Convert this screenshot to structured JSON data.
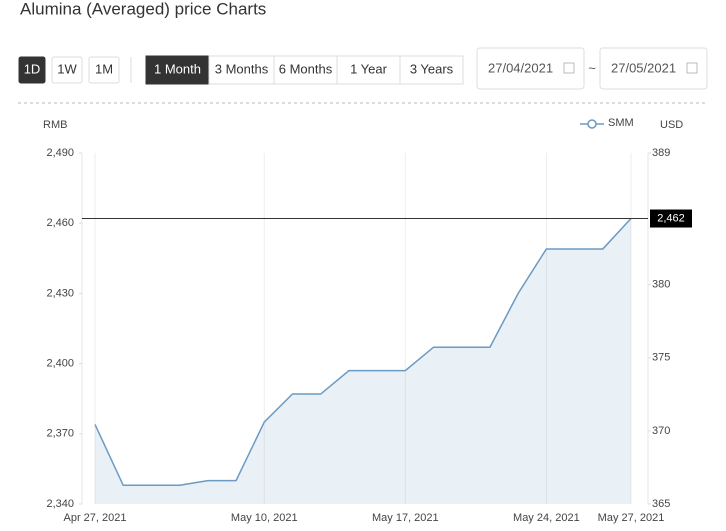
{
  "header": {
    "title": "Alumina (Averaged) price Charts"
  },
  "controls": {
    "intervals": [
      "1D",
      "1W",
      "1M"
    ],
    "ranges": [
      "1 Month",
      "3 Months",
      "6 Months",
      "1 Year",
      "3 Years"
    ],
    "start_date": "27/04/2021",
    "separator": "~",
    "end_date": "27/05/2021"
  },
  "chart_data": {
    "type": "line",
    "y_label": "RMB",
    "y2_label": "USD",
    "categories": [
      "Apr 27, 2021",
      null,
      null,
      null,
      null,
      null,
      "May 10, 2021",
      null,
      null,
      null,
      null,
      "May 17, 2021",
      null,
      null,
      null,
      null,
      "May 24, 2021",
      null,
      null,
      "May 27, 2021"
    ],
    "series": [
      {
        "name": "SMM",
        "color": "#6b9ac4",
        "values": [
          2374,
          2348,
          2348,
          2348,
          2350,
          2350,
          2375,
          2387,
          2387,
          2397,
          2397,
          2397,
          2407,
          2407,
          2407,
          2430,
          2449,
          2449,
          2449,
          2462
        ]
      }
    ],
    "ylim": [
      2340,
      2490
    ],
    "yticks": [
      {
        "value": 2340,
        "label": "2,340"
      },
      {
        "value": 2370,
        "label": "2,370"
      },
      {
        "value": 2400,
        "label": "2,400"
      },
      {
        "value": 2430,
        "label": "2,430"
      },
      {
        "value": 2460,
        "label": "2,460"
      },
      {
        "value": 2490,
        "label": "2,490"
      }
    ],
    "y2lim": [
      365,
      389
    ],
    "y2ticks": [
      365,
      370,
      375,
      380,
      389
    ],
    "current": {
      "value": 2462,
      "label": "2,462"
    },
    "legend": "top-right"
  }
}
